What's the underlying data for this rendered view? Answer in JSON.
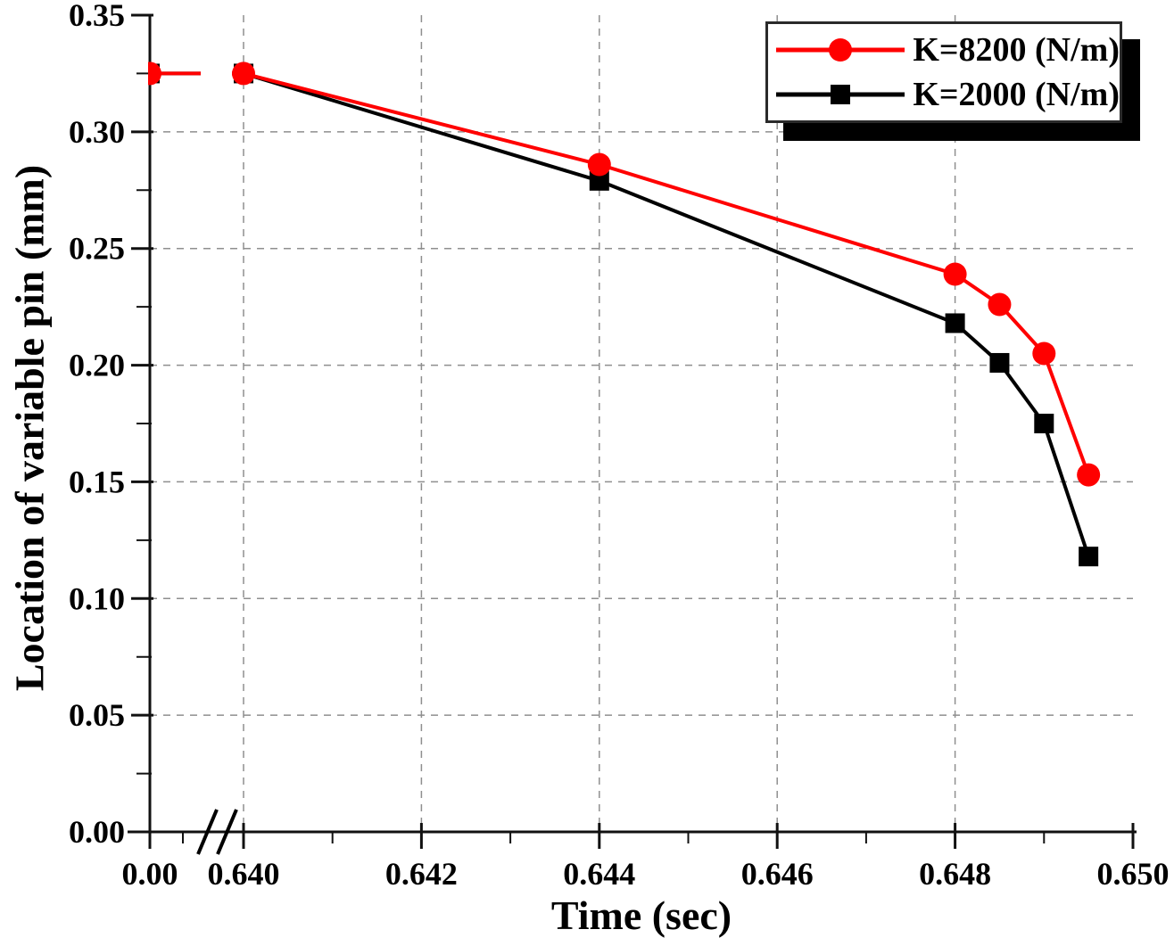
{
  "chart_data": {
    "type": "line",
    "title": "",
    "xlabel": "Time (sec)",
    "ylabel": "Location of variable pin (mm)",
    "x": [
      0,
      0.64,
      0.644,
      0.648,
      0.6485,
      0.649,
      0.6495
    ],
    "series": [
      {
        "name": "K=8200 (N/m)",
        "color": "#ff0000",
        "marker": "circle",
        "values": [
          0.325,
          0.325,
          0.286,
          0.239,
          0.226,
          0.205,
          0.153
        ]
      },
      {
        "name": "K=2000 (N/m)",
        "color": "#000000",
        "marker": "square",
        "values": [
          0.325,
          0.325,
          0.279,
          0.218,
          0.201,
          0.175,
          0.118
        ]
      }
    ],
    "ylim": [
      0,
      0.35
    ],
    "y_tick_values": [
      0,
      0.05,
      0.1,
      0.15,
      0.2,
      0.25,
      0.3,
      0.35
    ],
    "y_tick_labels": [
      "0.00",
      "0.05",
      "0.10",
      "0.15",
      "0.20",
      "0.25",
      "0.30",
      "0.35"
    ],
    "x_tick_values": [
      0,
      0.64,
      0.642,
      0.644,
      0.646,
      0.648,
      0.65
    ],
    "x_tick_labels": [
      "0.00",
      "0.640",
      "0.642",
      "0.644",
      "0.646",
      "0.648",
      "0.650"
    ],
    "x_minor_tick_values": [
      0.641,
      0.643,
      0.645,
      0.647,
      0.649
    ],
    "y_minor_tick_values": [
      0.025,
      0.075,
      0.125,
      0.175,
      0.225,
      0.275,
      0.325
    ],
    "axis_break": {
      "present": true,
      "between_labels": [
        "0.00",
        "0.640"
      ]
    },
    "grid": {
      "shown": true,
      "style": "dashed",
      "color": "#8f8f8f"
    },
    "axis_color": "#111111",
    "legend": {
      "position": "top-right"
    }
  }
}
